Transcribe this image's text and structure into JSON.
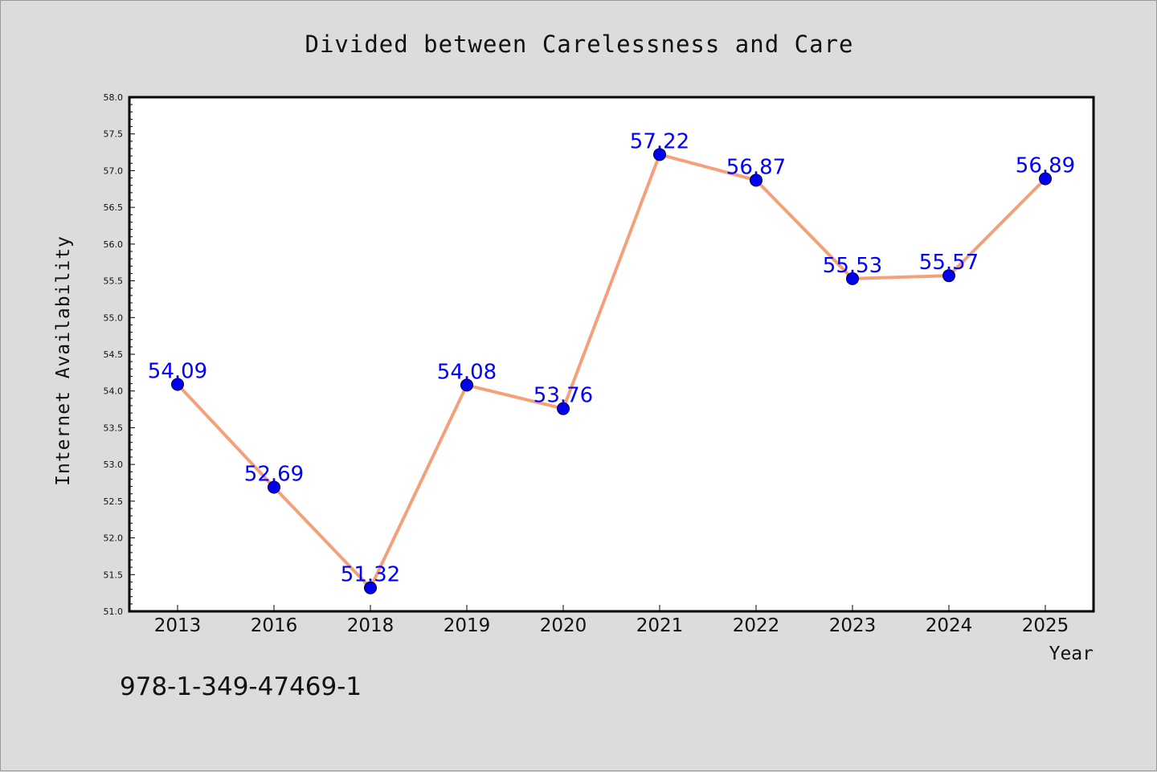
{
  "chart_data": {
    "type": "line",
    "title": "Divided between Carelessness and Care",
    "xlabel": "Year",
    "ylabel": "Internet Availability",
    "categories": [
      "2013",
      "2016",
      "2018",
      "2019",
      "2020",
      "2021",
      "2022",
      "2023",
      "2024",
      "2025"
    ],
    "series": [
      {
        "values": [
          54.09,
          52.69,
          51.32,
          54.08,
          53.76,
          57.22,
          56.87,
          55.53,
          55.57,
          56.89
        ]
      }
    ],
    "data_labels": [
      "54.09",
      "52.69",
      "51.32",
      "54.08",
      "53.76",
      "57.22",
      "56.87",
      "55.53",
      "55.57",
      "56.89"
    ],
    "ylim": [
      51.0,
      58.0
    ],
    "yticks": [
      "51.0",
      "51.5",
      "52.0",
      "52.5",
      "53.0",
      "53.5",
      "54.0",
      "54.5",
      "55.0",
      "55.5",
      "56.0",
      "56.5",
      "57.0",
      "57.5",
      "58.0"
    ],
    "grid": false,
    "legend": "none",
    "line_color": "#f4a07a",
    "marker_color": "#0000ee",
    "label_color": "#0000ff"
  },
  "footnote": "978-1-349-47469-1"
}
